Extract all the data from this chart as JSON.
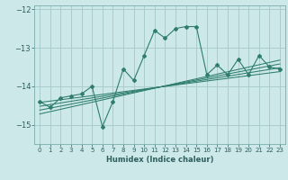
{
  "title": "",
  "xlabel": "Humidex (Indice chaleur)",
  "bg_color": "#cce8e8",
  "grid_color": "#aacccc",
  "line_color": "#2e7d6e",
  "x_data": [
    0,
    1,
    2,
    3,
    4,
    5,
    6,
    7,
    8,
    9,
    10,
    11,
    12,
    13,
    14,
    15,
    16,
    17,
    18,
    19,
    20,
    21,
    22,
    23
  ],
  "y_data": [
    -14.4,
    -14.55,
    -14.3,
    -14.25,
    -14.2,
    -14.0,
    -15.05,
    -14.4,
    -13.55,
    -13.85,
    -13.2,
    -12.55,
    -12.75,
    -12.5,
    -12.45,
    -12.45,
    -13.7,
    -13.45,
    -13.7,
    -13.3,
    -13.7,
    -13.2,
    -13.5,
    -13.55
  ],
  "ylim": [
    -15.5,
    -11.9
  ],
  "xlim": [
    -0.5,
    23.5
  ],
  "yticks": [
    -15,
    -14,
    -13,
    -12
  ],
  "xticks": [
    0,
    1,
    2,
    3,
    4,
    5,
    6,
    7,
    8,
    9,
    10,
    11,
    12,
    13,
    14,
    15,
    16,
    17,
    18,
    19,
    20,
    21,
    22,
    23
  ],
  "reg_lines": [
    {
      "x0": 0,
      "y0": -14.62,
      "x1": 23,
      "y1": -13.42
    },
    {
      "x0": 0,
      "y0": -14.52,
      "x1": 23,
      "y1": -13.52
    },
    {
      "x0": 0,
      "y0": -14.42,
      "x1": 23,
      "y1": -13.62
    },
    {
      "x0": 0,
      "y0": -14.72,
      "x1": 23,
      "y1": -13.32
    }
  ],
  "tick_color": "#2e5e5e",
  "xlabel_fontsize": 6.0,
  "ytick_fontsize": 6.0,
  "xtick_fontsize": 5.0
}
